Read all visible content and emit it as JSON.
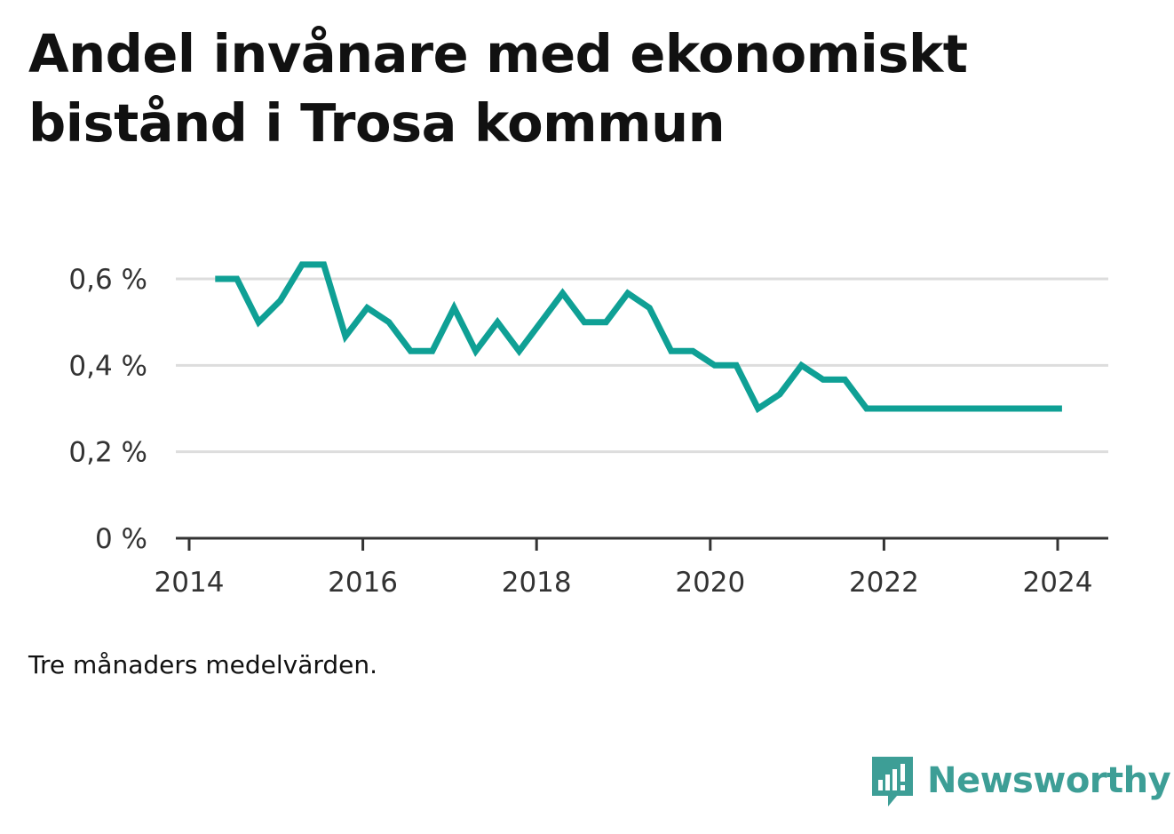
{
  "chart_data": {
    "type": "line",
    "title": "Andel invånare med ekonomiskt bistånd i Trosa kommun",
    "note": "Tre månaders medelvärden.",
    "xlabel": "",
    "ylabel": "",
    "ylim": [
      0,
      0.6
    ],
    "xlim": [
      2014,
      2024.6
    ],
    "y_ticks": [
      {
        "value": 0,
        "label": "0 %"
      },
      {
        "value": 0.2,
        "label": "0,2 %"
      },
      {
        "value": 0.4,
        "label": "0,4 %"
      },
      {
        "value": 0.6,
        "label": "0,6 %"
      }
    ],
    "x_ticks": [
      {
        "value": 2014,
        "label": "2014"
      },
      {
        "value": 2016,
        "label": "2016"
      },
      {
        "value": 2018,
        "label": "2018"
      },
      {
        "value": 2020,
        "label": "2020"
      },
      {
        "value": 2022,
        "label": "2022"
      },
      {
        "value": 2024,
        "label": "2024"
      }
    ],
    "grid": true,
    "series": [
      {
        "color": "#0fa095",
        "x": [
          2014.3,
          2014.55,
          2014.8,
          2015.05,
          2015.3,
          2015.55,
          2015.8,
          2016.05,
          2016.3,
          2016.55,
          2016.8,
          2017.05,
          2017.3,
          2017.55,
          2017.8,
          2018.05,
          2018.3,
          2018.55,
          2018.8,
          2019.05,
          2019.3,
          2019.55,
          2019.8,
          2020.05,
          2020.3,
          2020.55,
          2020.8,
          2021.05,
          2021.3,
          2021.55,
          2021.8,
          2022.05,
          2022.3,
          2022.55,
          2022.8,
          2023.05,
          2023.3,
          2023.55,
          2023.8,
          2024.05
        ],
        "values": [
          0.6,
          0.6,
          0.5,
          0.55,
          0.633,
          0.633,
          0.467,
          0.533,
          0.5,
          0.433,
          0.433,
          0.533,
          0.433,
          0.5,
          0.433,
          0.5,
          0.567,
          0.5,
          0.5,
          0.567,
          0.533,
          0.433,
          0.433,
          0.4,
          0.4,
          0.3,
          0.333,
          0.4,
          0.367,
          0.367,
          0.3,
          0.3,
          0.3,
          0.3,
          0.3,
          0.3,
          0.3,
          0.3,
          0.3,
          0.3
        ]
      }
    ]
  },
  "brand": {
    "name": "Newsworthy",
    "color": "#3d9e96",
    "icon": "bar-chart-speech-bubble-icon"
  }
}
